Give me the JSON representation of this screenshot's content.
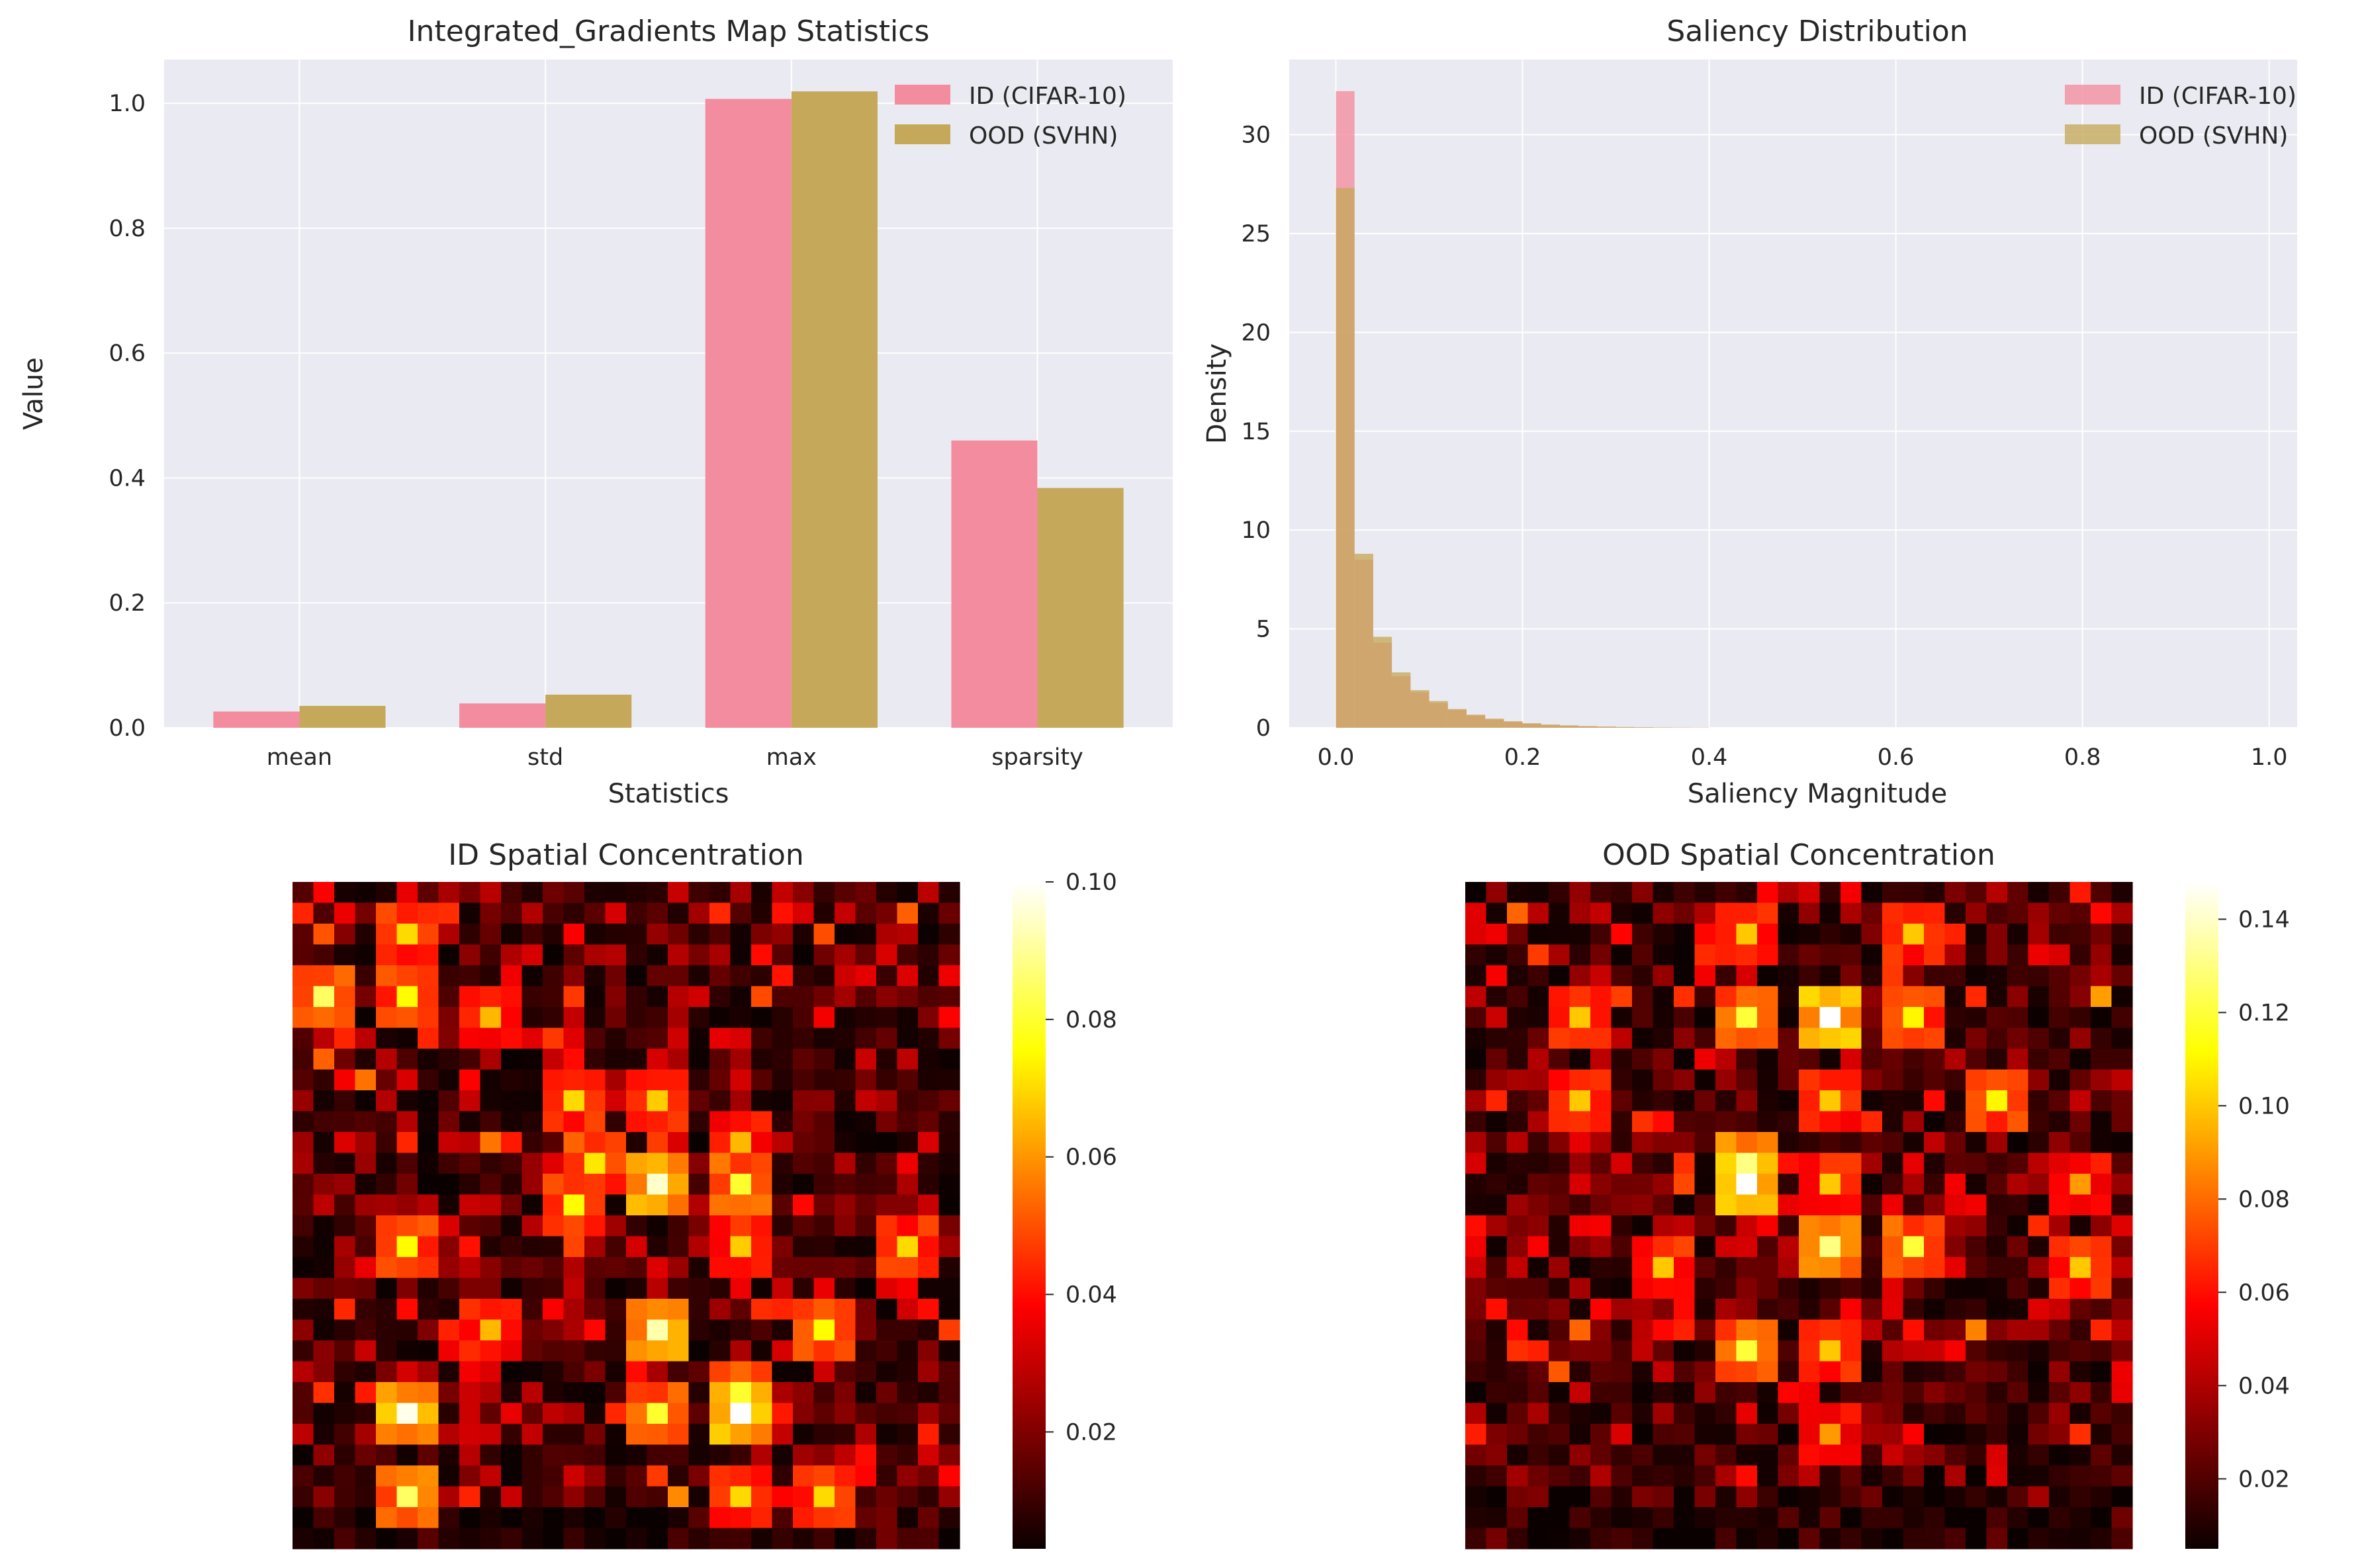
{
  "chart_data": [
    {
      "type": "bar",
      "title": "Integrated_Gradients Map Statistics",
      "xlabel": "Statistics",
      "ylabel": "Value",
      "categories": [
        "mean",
        "std",
        "max",
        "sparsity"
      ],
      "series": [
        {
          "name": "ID (CIFAR-10)",
          "values": [
            0.026,
            0.039,
            1.007,
            0.46
          ],
          "color": "#f28c9e"
        },
        {
          "name": "OOD (SVHN)",
          "values": [
            0.035,
            0.053,
            1.019,
            0.384
          ],
          "color": "#c5a85a"
        }
      ],
      "ylim": [
        0,
        1.07
      ],
      "yticks": [
        "0.0",
        "0.2",
        "0.4",
        "0.6",
        "0.8",
        "1.0"
      ],
      "grid": true,
      "legend_position": "top-right"
    },
    {
      "type": "histogram",
      "title": "Saliency Distribution",
      "xlabel": "Saliency Magnitude",
      "ylabel": "Density",
      "bin_width": 0.02,
      "bin_start": 0.0,
      "series": [
        {
          "name": "ID (CIFAR-10)",
          "color": "#f28c9e",
          "values": [
            32.2,
            8.5,
            4.3,
            2.6,
            1.8,
            1.25,
            0.9,
            0.62,
            0.42,
            0.3,
            0.2,
            0.14,
            0.1,
            0.07,
            0.05,
            0.035,
            0.025,
            0.018,
            0.012,
            0.008
          ]
        },
        {
          "name": "OOD (SVHN)",
          "color": "#c5a85a",
          "values": [
            27.3,
            8.8,
            4.6,
            2.8,
            1.9,
            1.35,
            0.95,
            0.66,
            0.46,
            0.33,
            0.23,
            0.16,
            0.12,
            0.085,
            0.06,
            0.04,
            0.03,
            0.02,
            0.014,
            0.01
          ]
        }
      ],
      "xlim": [
        -0.05,
        1.03
      ],
      "ylim": [
        0,
        33.8
      ],
      "xticks": [
        "0.0",
        "0.2",
        "0.4",
        "0.6",
        "0.8",
        "1.0"
      ],
      "yticks": [
        "0",
        "5",
        "10",
        "15",
        "20",
        "25",
        "30"
      ],
      "grid": true,
      "legend_position": "top-right"
    },
    {
      "type": "heatmap",
      "title": "ID Spatial Concentration",
      "colormap": "hot",
      "grid_size": 32,
      "vmin": 0.003,
      "vmax": 0.1,
      "colorbar_ticks": [
        "0.02",
        "0.04",
        "0.06",
        "0.08",
        "0.10"
      ],
      "seed": 7,
      "hotspots": [
        {
          "r": 2,
          "c": 5,
          "v": 0.07
        },
        {
          "r": 5,
          "c": 1,
          "v": 0.085
        },
        {
          "r": 5,
          "c": 5,
          "v": 0.075
        },
        {
          "r": 6,
          "c": 9,
          "v": 0.065
        },
        {
          "r": 10,
          "c": 13,
          "v": 0.07
        },
        {
          "r": 10,
          "c": 17,
          "v": 0.068
        },
        {
          "r": 12,
          "c": 21,
          "v": 0.065
        },
        {
          "r": 14,
          "c": 17,
          "v": 0.095
        },
        {
          "r": 14,
          "c": 21,
          "v": 0.08
        },
        {
          "r": 13,
          "c": 14,
          "v": 0.072
        },
        {
          "r": 15,
          "c": 13,
          "v": 0.075
        },
        {
          "r": 17,
          "c": 5,
          "v": 0.075
        },
        {
          "r": 17,
          "c": 29,
          "v": 0.07
        },
        {
          "r": 17,
          "c": 21,
          "v": 0.068
        },
        {
          "r": 21,
          "c": 17,
          "v": 0.092
        },
        {
          "r": 21,
          "c": 25,
          "v": 0.075
        },
        {
          "r": 21,
          "c": 9,
          "v": 0.065
        },
        {
          "r": 25,
          "c": 5,
          "v": 0.098
        },
        {
          "r": 25,
          "c": 21,
          "v": 0.1
        },
        {
          "r": 24,
          "c": 21,
          "v": 0.08
        },
        {
          "r": 25,
          "c": 17,
          "v": 0.08
        },
        {
          "r": 29,
          "c": 5,
          "v": 0.085
        },
        {
          "r": 29,
          "c": 21,
          "v": 0.07
        },
        {
          "r": 29,
          "c": 25,
          "v": 0.07
        }
      ],
      "colder_rows": [
        30,
        31
      ]
    },
    {
      "type": "heatmap",
      "title": "OOD Spatial Concentration",
      "colormap": "hot",
      "grid_size": 32,
      "vmin": 0.005,
      "vmax": 0.148,
      "colorbar_ticks": [
        "0.02",
        "0.04",
        "0.06",
        "0.08",
        "0.10",
        "0.12",
        "0.14"
      ],
      "seed": 19,
      "hotspots": [
        {
          "r": 2,
          "c": 13,
          "v": 0.1
        },
        {
          "r": 2,
          "c": 21,
          "v": 0.1
        },
        {
          "r": 6,
          "c": 13,
          "v": 0.12
        },
        {
          "r": 6,
          "c": 17,
          "v": 0.148
        },
        {
          "r": 6,
          "c": 21,
          "v": 0.11
        },
        {
          "r": 6,
          "c": 5,
          "v": 0.1
        },
        {
          "r": 10,
          "c": 17,
          "v": 0.1
        },
        {
          "r": 10,
          "c": 25,
          "v": 0.11
        },
        {
          "r": 10,
          "c": 5,
          "v": 0.1
        },
        {
          "r": 13,
          "c": 13,
          "v": 0.13
        },
        {
          "r": 14,
          "c": 13,
          "v": 0.148
        },
        {
          "r": 14,
          "c": 17,
          "v": 0.1
        },
        {
          "r": 17,
          "c": 17,
          "v": 0.13
        },
        {
          "r": 17,
          "c": 21,
          "v": 0.12
        },
        {
          "r": 18,
          "c": 9,
          "v": 0.1
        },
        {
          "r": 22,
          "c": 13,
          "v": 0.12
        },
        {
          "r": 22,
          "c": 17,
          "v": 0.1
        },
        {
          "r": 26,
          "c": 17,
          "v": 0.09
        },
        {
          "r": 14,
          "c": 29,
          "v": 0.09
        },
        {
          "r": 18,
          "c": 29,
          "v": 0.1
        }
      ],
      "colder_rows": [
        29,
        30,
        31
      ]
    }
  ]
}
